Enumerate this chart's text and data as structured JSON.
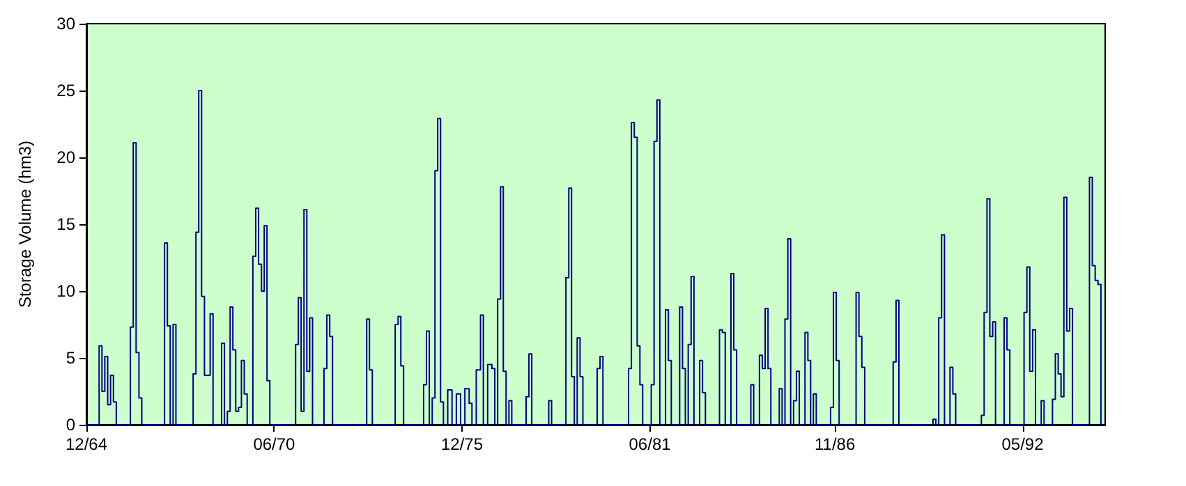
{
  "chart_data": {
    "type": "step",
    "ylabel": "Storage Volume (hm3)",
    "xlim": [
      "1964-12",
      "1994-10"
    ],
    "ylim": [
      0,
      30
    ],
    "yticks": [
      0,
      5,
      10,
      15,
      20,
      25,
      30
    ],
    "xticks": [
      {
        "value": "1964-12",
        "label": "12/64"
      },
      {
        "value": "1970-06",
        "label": "06/70"
      },
      {
        "value": "1975-12",
        "label": "12/75"
      },
      {
        "value": "1981-06",
        "label": "06/81"
      },
      {
        "value": "1986-11",
        "label": "11/86"
      },
      {
        "value": "1992-05",
        "label": "05/92"
      }
    ],
    "grid": false,
    "marker": "none",
    "line_style": "solid",
    "series": [
      {
        "color": "#000080",
        "x": [
          "1964-12",
          "1965-04",
          "1965-05",
          "1965-06",
          "1965-07",
          "1965-08",
          "1965-09",
          "1965-10",
          "1965-11",
          "1966-03",
          "1966-04",
          "1966-05",
          "1966-06",
          "1966-07",
          "1966-08",
          "1967-03",
          "1967-04",
          "1967-05",
          "1967-06",
          "1967-07",
          "1967-08",
          "1968-01",
          "1968-02",
          "1968-03",
          "1968-04",
          "1968-05",
          "1968-06",
          "1968-07",
          "1968-08",
          "1968-09",
          "1968-11",
          "1968-12",
          "1969-01",
          "1969-02",
          "1969-03",
          "1969-04",
          "1969-05",
          "1969-06",
          "1969-07",
          "1969-08",
          "1969-09",
          "1969-10",
          "1969-11",
          "1969-12",
          "1970-01",
          "1970-02",
          "1970-03",
          "1970-04",
          "1970-05",
          "1971-01",
          "1971-02",
          "1971-03",
          "1971-04",
          "1971-05",
          "1971-06",
          "1971-07",
          "1971-08",
          "1971-11",
          "1971-12",
          "1972-01",
          "1972-02",
          "1972-03",
          "1973-02",
          "1973-03",
          "1973-04",
          "1973-05",
          "1973-12",
          "1974-01",
          "1974-02",
          "1974-03",
          "1974-04",
          "1974-10",
          "1974-11",
          "1974-12",
          "1975-01",
          "1975-02",
          "1975-03",
          "1975-04",
          "1975-05",
          "1975-06",
          "1975-08",
          "1975-09",
          "1975-11",
          "1975-12",
          "1976-02",
          "1976-03",
          "1976-04",
          "1976-06",
          "1976-07",
          "1976-08",
          "1976-10",
          "1976-11",
          "1976-12",
          "1977-01",
          "1977-02",
          "1977-03",
          "1977-04",
          "1977-05",
          "1977-06",
          "1977-10",
          "1977-11",
          "1977-12",
          "1978-01",
          "1978-06",
          "1978-07",
          "1978-08",
          "1978-12",
          "1979-01",
          "1979-02",
          "1979-03",
          "1979-04",
          "1979-05",
          "1979-06",
          "1979-07",
          "1979-11",
          "1979-12",
          "1980-01",
          "1980-02",
          "1980-10",
          "1980-11",
          "1980-12",
          "1981-01",
          "1981-02",
          "1981-03",
          "1981-04",
          "1981-06",
          "1981-07",
          "1981-08",
          "1981-09",
          "1981-10",
          "1981-11",
          "1981-12",
          "1982-01",
          "1982-02",
          "1982-04",
          "1982-05",
          "1982-06",
          "1982-07",
          "1982-08",
          "1982-09",
          "1982-10",
          "1982-11",
          "1982-12",
          "1983-01",
          "1983-02",
          "1983-06",
          "1983-07",
          "1983-08",
          "1983-09",
          "1983-10",
          "1983-11",
          "1983-12",
          "1984-01",
          "1984-05",
          "1984-06",
          "1984-07",
          "1984-08",
          "1984-09",
          "1984-10",
          "1984-11",
          "1984-12",
          "1985-01",
          "1985-03",
          "1985-04",
          "1985-05",
          "1985-06",
          "1985-07",
          "1985-08",
          "1985-09",
          "1985-10",
          "1985-11",
          "1985-12",
          "1986-01",
          "1986-02",
          "1986-03",
          "1986-04",
          "1986-05",
          "1986-09",
          "1986-10",
          "1986-11",
          "1986-12",
          "1987-01",
          "1987-06",
          "1987-07",
          "1987-08",
          "1987-09",
          "1987-10",
          "1988-07",
          "1988-08",
          "1988-09",
          "1988-10",
          "1989-09",
          "1989-10",
          "1989-11",
          "1989-12",
          "1990-01",
          "1990-02",
          "1990-03",
          "1990-04",
          "1990-05",
          "1990-06",
          "1991-02",
          "1991-03",
          "1991-04",
          "1991-05",
          "1991-06",
          "1991-07",
          "1991-08",
          "1991-10",
          "1991-11",
          "1991-12",
          "1992-01",
          "1992-05",
          "1992-06",
          "1992-07",
          "1992-08",
          "1992-09",
          "1992-10",
          "1992-11",
          "1992-12",
          "1993-01",
          "1993-03",
          "1993-04",
          "1993-05",
          "1993-06",
          "1993-07",
          "1993-08",
          "1993-09",
          "1993-10",
          "1993-11",
          "1994-04",
          "1994-05",
          "1994-06",
          "1994-07",
          "1994-08",
          "1994-09"
        ],
        "values": [
          0,
          0,
          5.9,
          2.5,
          5.1,
          1.5,
          3.7,
          1.7,
          0,
          0,
          7.3,
          21.1,
          5.4,
          2,
          0,
          0,
          13.6,
          7.4,
          0,
          7.5,
          0,
          0,
          3.8,
          14.4,
          25,
          9.6,
          3.7,
          3.7,
          8.3,
          0,
          0,
          6.1,
          0,
          1,
          8.8,
          5.6,
          1,
          1.3,
          4.8,
          2.3,
          0,
          0,
          12.6,
          16.2,
          12,
          10,
          14.9,
          3.3,
          0,
          0,
          6,
          9.5,
          1,
          16.1,
          4,
          8,
          0,
          0,
          4.2,
          8.2,
          6.6,
          0,
          0,
          7.9,
          4.1,
          0,
          0,
          7.5,
          8.1,
          4.4,
          0,
          0,
          3,
          7,
          0,
          2,
          19,
          22.9,
          1.7,
          0,
          2.6,
          0,
          2.3,
          0,
          2.7,
          1.6,
          0,
          4.1,
          8.2,
          0,
          4.5,
          4.2,
          0,
          9.4,
          17.8,
          4,
          0,
          1.8,
          0,
          0,
          2.1,
          5.3,
          0,
          0,
          1.8,
          0,
          0,
          11,
          17.7,
          3.6,
          0,
          6.5,
          3.6,
          0,
          0,
          4.2,
          5.1,
          0,
          0,
          4.2,
          22.6,
          21.5,
          5.9,
          3,
          0,
          0,
          3,
          21.2,
          24.3,
          0,
          0,
          8.6,
          4.8,
          0,
          0,
          8.8,
          4.2,
          0,
          6,
          11.1,
          0,
          0,
          4.8,
          2.4,
          0,
          0,
          7.1,
          6.9,
          0,
          0,
          11.3,
          5.6,
          0,
          0,
          3,
          0,
          0,
          5.2,
          4.2,
          8.7,
          4.2,
          0,
          0,
          2.7,
          0,
          7.9,
          13.9,
          0,
          1.8,
          4,
          0,
          0,
          6.9,
          4.8,
          0,
          2.3,
          0,
          0,
          1.3,
          9.9,
          4.8,
          0,
          0,
          9.9,
          6.6,
          4.3,
          0,
          0,
          4.7,
          9.3,
          0,
          0,
          0.4,
          0,
          8,
          14.2,
          0,
          0,
          4.3,
          2.3,
          0,
          0,
          0.7,
          8.4,
          16.9,
          6.6,
          7.7,
          0,
          0,
          8,
          5.6,
          0,
          0,
          8.4,
          11.8,
          4,
          7.1,
          0,
          0,
          1.8,
          0,
          0,
          1.9,
          5.3,
          3.8,
          2.1,
          17,
          7,
          8.7,
          0,
          0,
          18.5,
          11.9,
          10.8,
          10.5,
          0
        ]
      }
    ]
  }
}
